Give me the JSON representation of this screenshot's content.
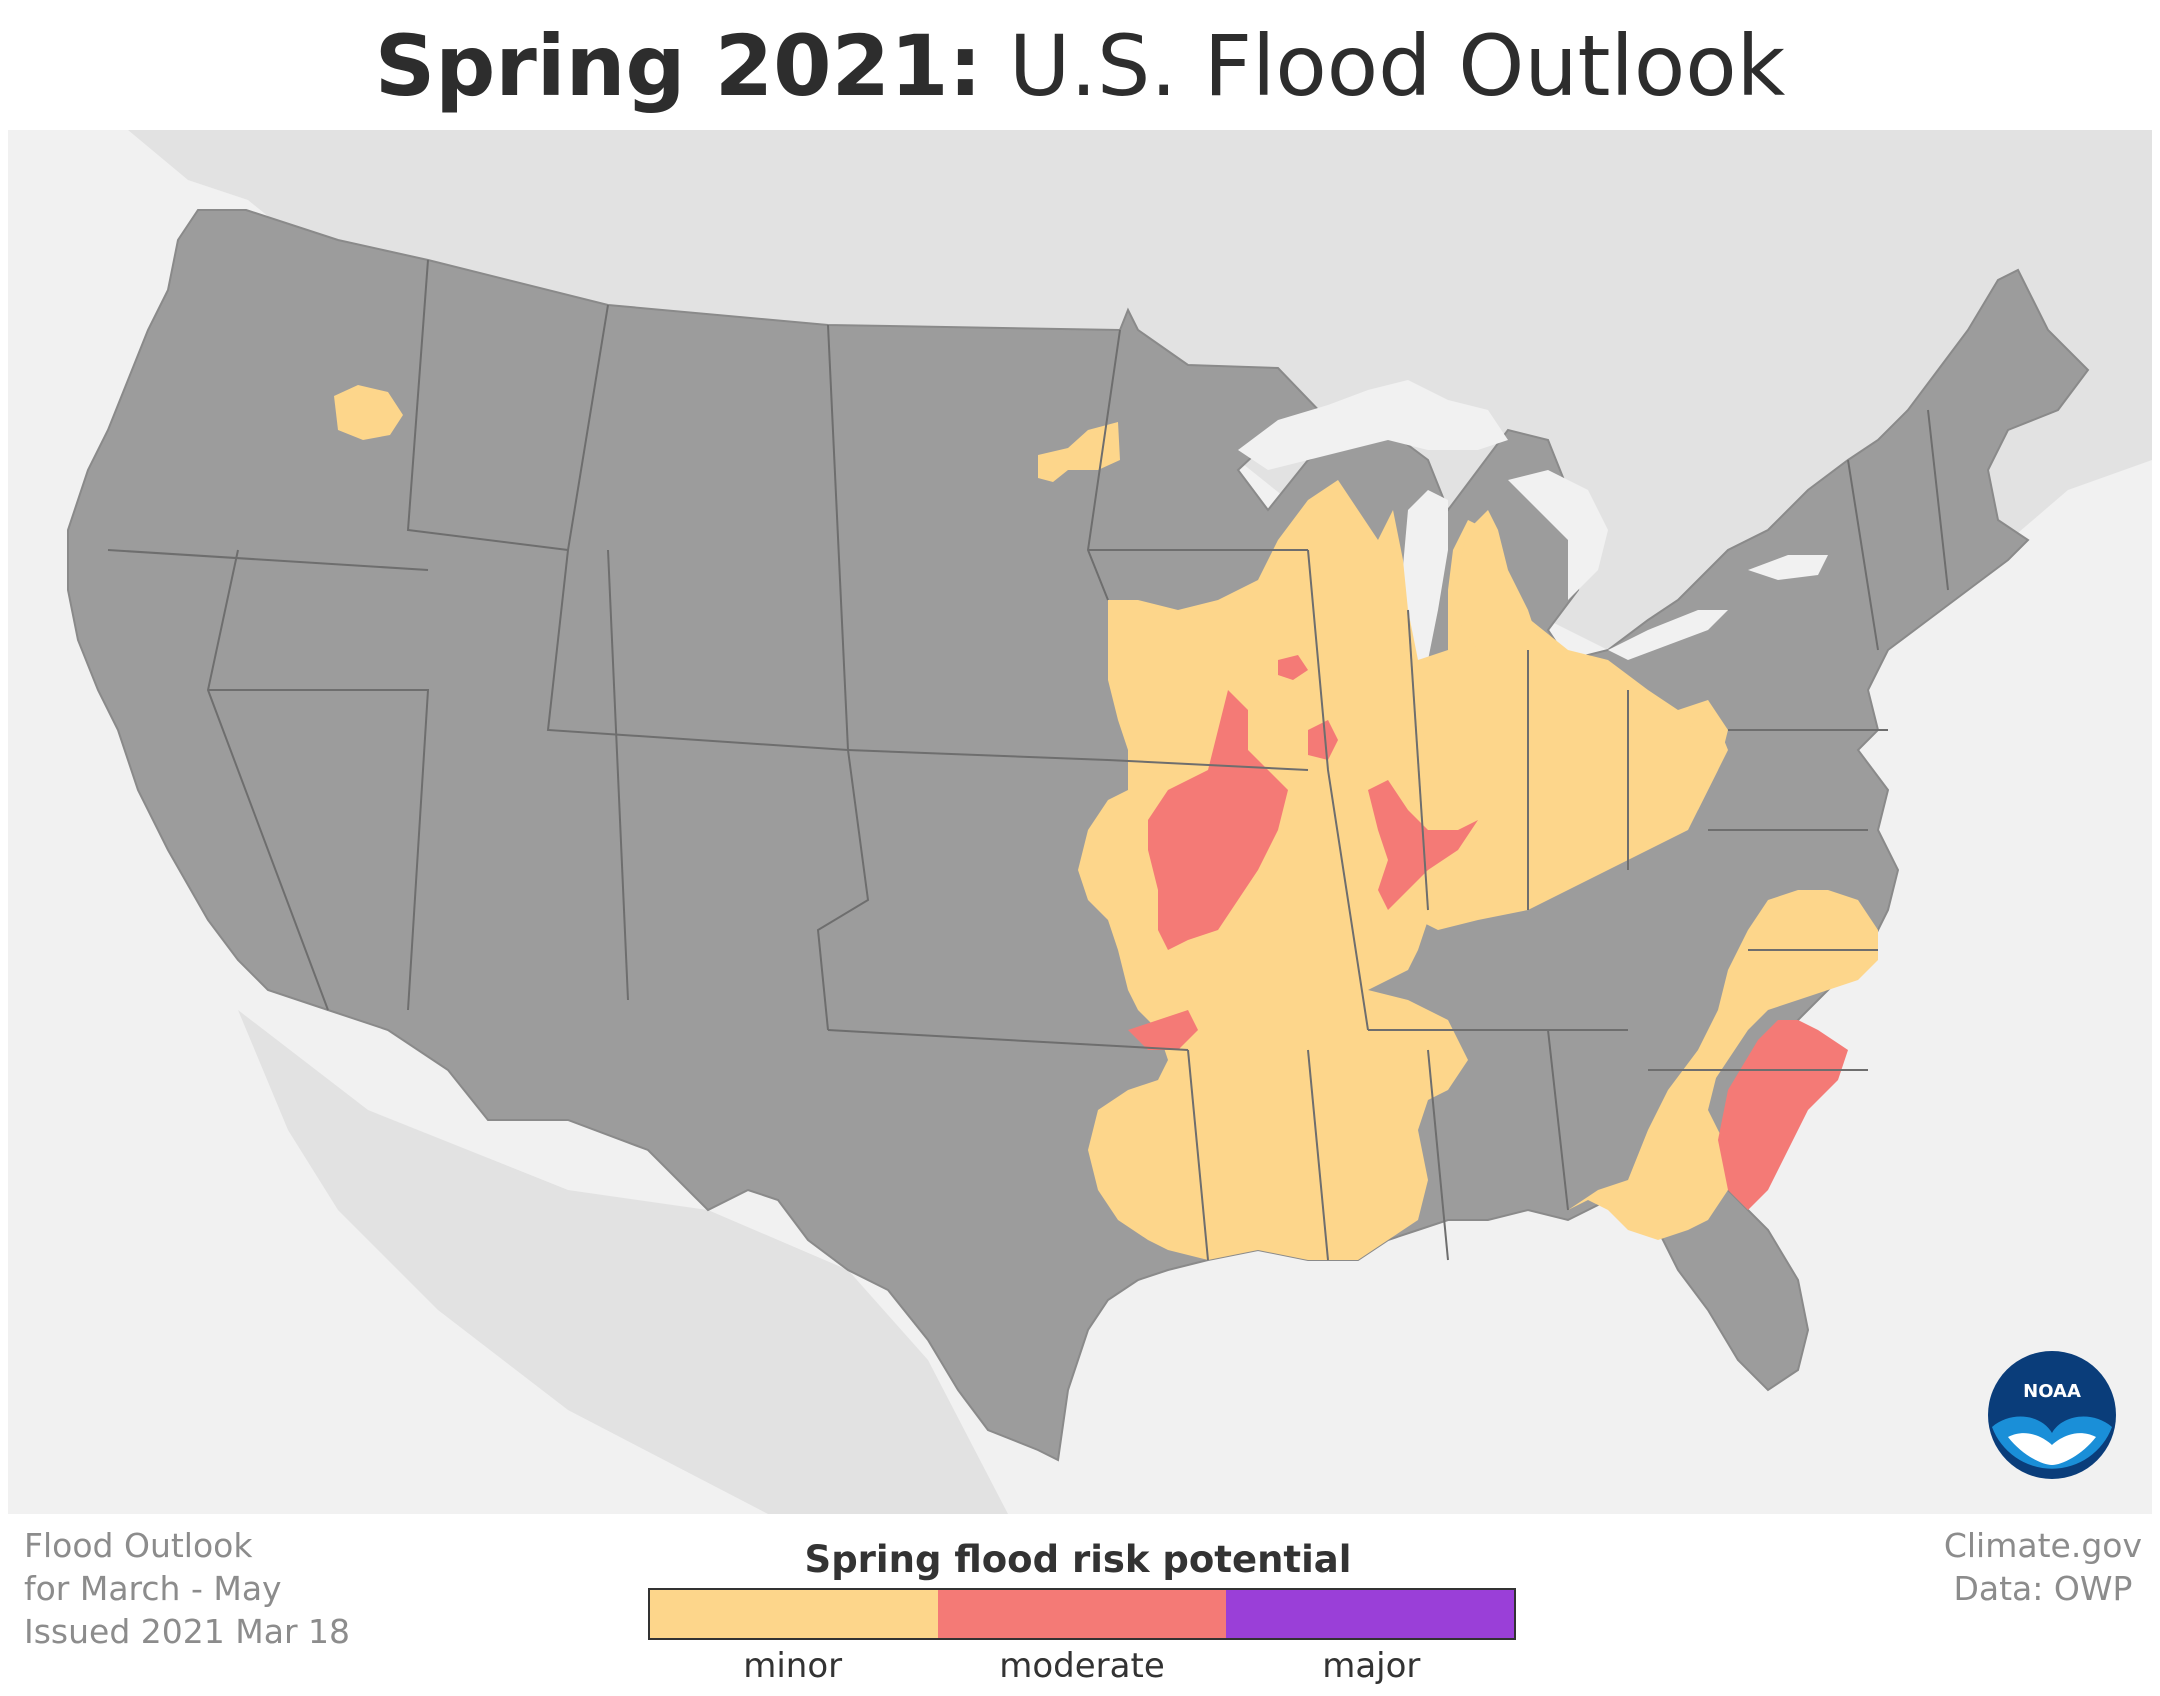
{
  "title": {
    "bold_part": "Spring 2021:",
    "rest": "U.S. Flood Outlook"
  },
  "footer_left": {
    "line1": "Flood Outlook",
    "line2": "for March - May",
    "line3": "Issued 2021 Mar 18"
  },
  "footer_right": {
    "line1": "Climate.gov",
    "line2": "Data: OWP"
  },
  "legend": {
    "title": "Spring flood risk potential",
    "items": [
      {
        "label": "minor",
        "color": "#fdd68b"
      },
      {
        "label": "moderate",
        "color": "#f47a76"
      },
      {
        "label": "major",
        "color": "#9a3fd8"
      }
    ]
  },
  "logo": {
    "text": "NOAA"
  },
  "colors": {
    "land": "#9c9c9c",
    "background_land": "#e2e2e2",
    "water": "#f1f1f1",
    "state_border": "#6e6e6e",
    "minor": "#fdd68b",
    "moderate": "#f47a76",
    "major": "#9a3fd8"
  },
  "map_data": {
    "risk_regions": [
      {
        "region": "Minnesota border (Red River area)",
        "risk": "minor"
      },
      {
        "region": "Northern Idaho / Washington border",
        "risk": "minor"
      },
      {
        "region": "Upper Mississippi basin: Wisconsin, Iowa, Illinois",
        "risk": "minor"
      },
      {
        "region": "Missouri",
        "risk": "moderate"
      },
      {
        "region": "Indiana, Ohio, Kentucky, West Virginia",
        "risk": "minor"
      },
      {
        "region": "Ohio River confluence (IL/KY/IN)",
        "risk": "moderate"
      },
      {
        "region": "Lower Mississippi: Arkansas, Louisiana, Mississippi",
        "risk": "minor"
      },
      {
        "region": "Georgia, Virginia, North Carolina",
        "risk": "minor"
      },
      {
        "region": "Carolinas coastal plain",
        "risk": "moderate"
      },
      {
        "region": "Eastern Oklahoma",
        "risk": "moderate"
      },
      {
        "region": "Lower Michigan",
        "risk": "minor"
      }
    ]
  }
}
